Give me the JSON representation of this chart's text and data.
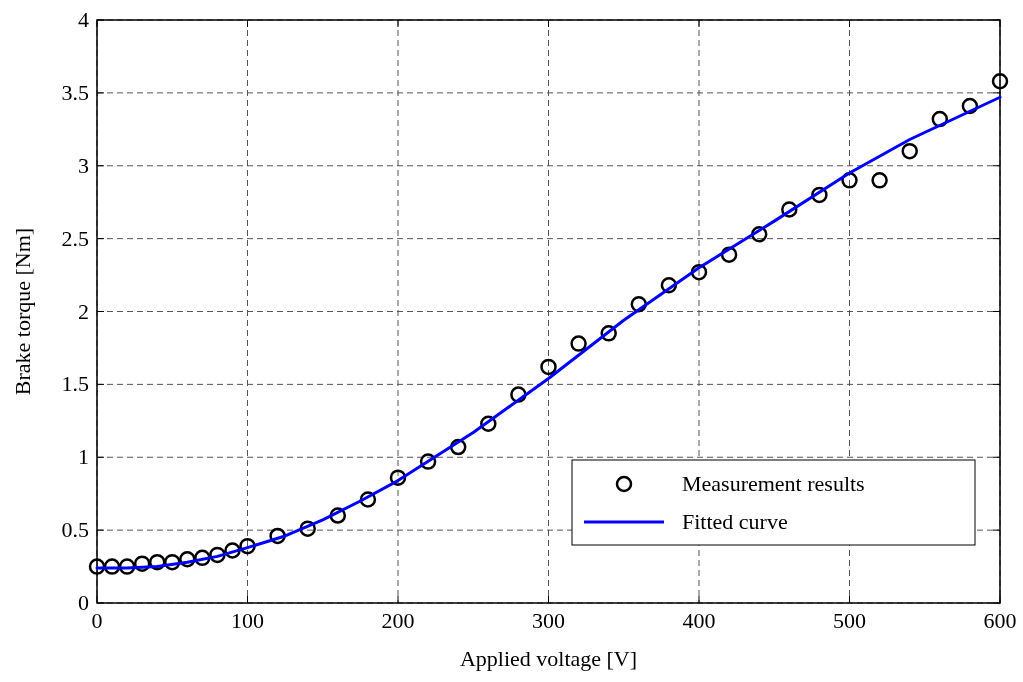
{
  "chart_data": {
    "type": "scatter",
    "xlabel": "Applied voltage [V]",
    "ylabel": "Brake torque [Nm]",
    "xlim": [
      0,
      600
    ],
    "xticks": [
      0,
      100,
      200,
      300,
      400,
      500,
      600
    ],
    "ylim": [
      0,
      4
    ],
    "yticks": [
      0,
      0.5,
      1,
      1.5,
      2,
      2.5,
      3,
      3.5,
      4
    ],
    "grid": true,
    "legend": "bottom right",
    "series": [
      {
        "name": "Measurement results",
        "marker": "circle",
        "color": "#000000",
        "x": [
          0,
          10,
          20,
          30,
          40,
          50,
          60,
          70,
          80,
          90,
          100,
          120,
          140,
          160,
          180,
          200,
          220,
          240,
          260,
          280,
          300,
          320,
          340,
          360,
          380,
          400,
          420,
          440,
          460,
          480,
          500,
          520,
          540,
          560,
          580,
          600
        ],
        "values": [
          0.25,
          0.25,
          0.25,
          0.27,
          0.28,
          0.28,
          0.3,
          0.31,
          0.33,
          0.36,
          0.39,
          0.46,
          0.51,
          0.6,
          0.71,
          0.86,
          0.97,
          1.07,
          1.23,
          1.43,
          1.62,
          1.78,
          1.85,
          2.05,
          2.18,
          2.27,
          2.39,
          2.53,
          2.7,
          2.8,
          2.9,
          2.9,
          3.1,
          3.32,
          3.41,
          3.58
        ]
      },
      {
        "name": "Fitted curve",
        "type": "line",
        "marker": "none",
        "line_style": "solid",
        "color": "#0000ff",
        "x": [
          0,
          20,
          40,
          60,
          80,
          100,
          125,
          150,
          175,
          200,
          250,
          300,
          350,
          400,
          450,
          500,
          540,
          600
        ],
        "values": [
          0.24,
          0.24,
          0.25,
          0.28,
          0.32,
          0.38,
          0.46,
          0.57,
          0.7,
          0.84,
          1.17,
          1.54,
          1.94,
          2.3,
          2.62,
          2.95,
          3.18,
          3.47
        ]
      }
    ]
  }
}
